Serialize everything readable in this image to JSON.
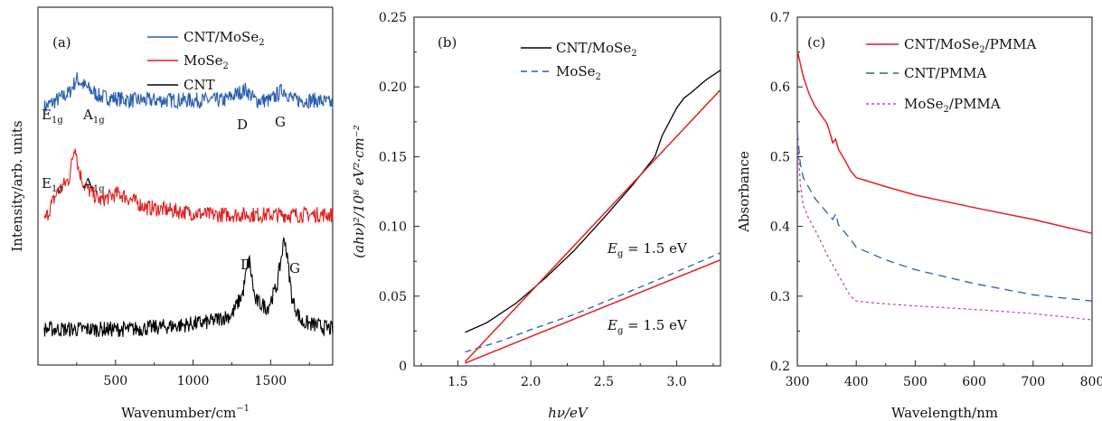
{
  "colors": {
    "blue": "#2a5db0",
    "red": "#e02020",
    "black": "#000000",
    "purple": "#b04bb0"
  },
  "panels": [
    {
      "tag": "(a)",
      "xlabel": "Wavenumber/cm",
      "xlabel_sup": "−1",
      "ylabel": "Intensity/arb. units",
      "legend": [
        {
          "text": "CNT/MoSe",
          "sub": "2",
          "color": "#2a5db0"
        },
        {
          "text": "MoSe",
          "sub": "2",
          "color": "#e02020"
        },
        {
          "text": "CNT",
          "sub": "",
          "color": "#000000"
        }
      ],
      "annotations": [
        {
          "text": "E",
          "sub": "1g"
        },
        {
          "text": "A",
          "sub": "1g"
        },
        {
          "text": "D",
          "sub": ""
        },
        {
          "text": "G",
          "sub": ""
        },
        {
          "text": "E",
          "sub": "1g"
        },
        {
          "text": "A",
          "sub": "1g"
        },
        {
          "text": "D",
          "sub": ""
        },
        {
          "text": "G",
          "sub": ""
        }
      ]
    },
    {
      "tag": "(b)",
      "xlabel": "hν/eV",
      "ylabel": "(ahν)²/10⁸ eV²·cm⁻²",
      "legend": [
        {
          "text": "CNT/MoSe",
          "sub": "2",
          "color": "#000000"
        },
        {
          "text": "MoSe",
          "sub": "2",
          "color": "#2a5db0"
        }
      ],
      "annotations": [
        {
          "text": "E",
          "sub": "g",
          "tail": " = 1.5 eV"
        },
        {
          "text": "E",
          "sub": "g",
          "tail": " = 1.5 eV"
        }
      ]
    },
    {
      "tag": "(c)",
      "xlabel": "Wavelength/nm",
      "ylabel": "Absorbance",
      "legend": [
        {
          "text": "CNT/MoSe",
          "sub": "2",
          "tail": "/PMMA",
          "color": "#e02020"
        },
        {
          "text": "CNT/PMMA",
          "sub": "",
          "tail": "",
          "color": "#2a5db0"
        },
        {
          "text": "MoSe",
          "sub": "2",
          "tail": "/PMMA",
          "color": "#b04bb0"
        }
      ]
    }
  ],
  "chart_data": [
    {
      "type": "line",
      "xlabel": "Wavenumber/cm⁻¹",
      "ylabel": "Intensity/arb. units",
      "xlim": [
        0,
        1900
      ],
      "xticks": [
        500,
        1000,
        1500
      ],
      "series": [
        {
          "name": "CNT/MoSe2",
          "x": [
            40,
            200,
            250,
            300,
            400,
            600,
            800,
            1000,
            1200,
            1340,
            1400,
            1500,
            1580,
            1650,
            1800,
            1900
          ],
          "y": [
            0.72,
            0.76,
            0.8,
            0.78,
            0.75,
            0.74,
            0.74,
            0.74,
            0.74,
            0.77,
            0.74,
            0.74,
            0.77,
            0.74,
            0.74,
            0.73
          ]
        },
        {
          "name": "MoSe2",
          "x": [
            40,
            120,
            200,
            240,
            260,
            300,
            400,
            520,
            700,
            900,
            1100,
            1300,
            1500,
            1700,
            1900
          ],
          "y": [
            0.4,
            0.48,
            0.52,
            0.62,
            0.55,
            0.5,
            0.46,
            0.48,
            0.44,
            0.43,
            0.42,
            0.42,
            0.42,
            0.42,
            0.42
          ]
        },
        {
          "name": "CNT",
          "x": [
            40,
            300,
            600,
            900,
            1100,
            1250,
            1320,
            1360,
            1400,
            1480,
            1540,
            1590,
            1640,
            1700,
            1800,
            1900
          ],
          "y": [
            0.1,
            0.1,
            0.1,
            0.11,
            0.12,
            0.14,
            0.2,
            0.3,
            0.18,
            0.16,
            0.22,
            0.36,
            0.18,
            0.12,
            0.11,
            0.1
          ]
        }
      ]
    },
    {
      "type": "line",
      "xlabel": "hν/eV",
      "ylabel": "(ahν)²/10⁸ eV²·cm⁻²",
      "xlim": [
        1.2,
        3.3
      ],
      "ylim": [
        0,
        0.25
      ],
      "xticks": [
        1.5,
        2.0,
        2.5,
        3.0
      ],
      "yticks": [
        0,
        0.05,
        0.1,
        0.15,
        0.2,
        0.25
      ],
      "series": [
        {
          "name": "CNT/MoSe2",
          "x": [
            1.55,
            1.7,
            1.9,
            2.1,
            2.3,
            2.5,
            2.7,
            2.85,
            2.9,
            3.0,
            3.05,
            3.1,
            3.2,
            3.3
          ],
          "y": [
            0.024,
            0.031,
            0.045,
            0.063,
            0.083,
            0.106,
            0.13,
            0.15,
            0.165,
            0.185,
            0.192,
            0.196,
            0.205,
            0.212
          ]
        },
        {
          "name": "MoSe2",
          "x": [
            1.55,
            1.8,
            2.0,
            2.3,
            2.6,
            2.9,
            3.1,
            3.3
          ],
          "y": [
            0.01,
            0.018,
            0.026,
            0.037,
            0.05,
            0.063,
            0.072,
            0.081
          ]
        },
        {
          "name": "",
          "x": [
            1.55,
            3.3
          ],
          "y": [
            0.003,
            0.198
          ]
        },
        {
          "name": "",
          "x": [
            1.55,
            3.3
          ],
          "y": [
            0.002,
            0.076
          ]
        }
      ]
    },
    {
      "type": "line",
      "xlabel": "Wavelength/nm",
      "ylabel": "Absorbance",
      "xlim": [
        300,
        800
      ],
      "ylim": [
        0.2,
        0.7
      ],
      "xticks": [
        300,
        400,
        500,
        600,
        700,
        800
      ],
      "yticks": [
        0.2,
        0.3,
        0.4,
        0.5,
        0.6,
        0.7
      ],
      "series": [
        {
          "name": "CNT/MoSe2/PMMA",
          "x": [
            300,
            310,
            320,
            330,
            340,
            350,
            355,
            360,
            365,
            370,
            380,
            390,
            400,
            450,
            500,
            600,
            700,
            800
          ],
          "y": [
            0.652,
            0.615,
            0.59,
            0.572,
            0.56,
            0.548,
            0.535,
            0.52,
            0.525,
            0.51,
            0.496,
            0.48,
            0.47,
            0.457,
            0.445,
            0.427,
            0.41,
            0.39
          ]
        },
        {
          "name": "CNT/PMMA",
          "x": [
            300,
            305,
            310,
            320,
            330,
            340,
            350,
            360,
            365,
            370,
            380,
            390,
            400,
            450,
            500,
            600,
            700,
            800
          ],
          "y": [
            0.535,
            0.49,
            0.47,
            0.455,
            0.44,
            0.43,
            0.42,
            0.41,
            0.418,
            0.402,
            0.392,
            0.382,
            0.37,
            0.352,
            0.338,
            0.318,
            0.302,
            0.293
          ]
        },
        {
          "name": "MoSe2/PMMA",
          "x": [
            300,
            305,
            310,
            320,
            330,
            340,
            350,
            360,
            370,
            380,
            390,
            400,
            420,
            450,
            500,
            600,
            700,
            800
          ],
          "y": [
            0.53,
            0.46,
            0.43,
            0.41,
            0.395,
            0.378,
            0.36,
            0.345,
            0.33,
            0.315,
            0.3,
            0.293,
            0.291,
            0.289,
            0.286,
            0.281,
            0.275,
            0.266
          ]
        }
      ]
    }
  ]
}
